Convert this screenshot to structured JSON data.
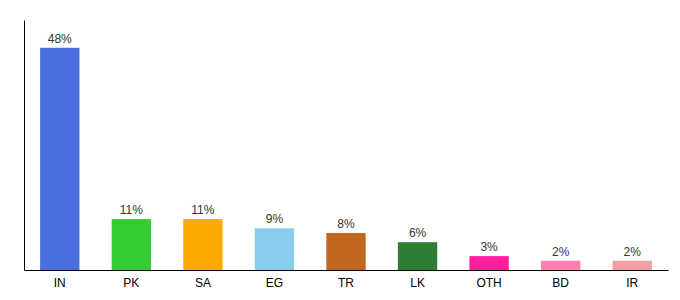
{
  "chart_data": {
    "type": "bar",
    "categories": [
      "IN",
      "PK",
      "SA",
      "EG",
      "TR",
      "LK",
      "OTH",
      "BD",
      "IR"
    ],
    "values": [
      48,
      11,
      11,
      9,
      8,
      6,
      3,
      2,
      2
    ],
    "value_labels": [
      "48%",
      "11%",
      "11%",
      "9%",
      "8%",
      "6%",
      "3%",
      "2%",
      "2%"
    ],
    "data_labels": true,
    "colors": [
      "#4a6fdc",
      "#33cc33",
      "#ffaa00",
      "#88ccee",
      "#c06820",
      "#2e7d32",
      "#ff1f9c",
      "#ff80b0",
      "#f0a0a0"
    ],
    "ylim": [
      0,
      54
    ],
    "tick_labels": "x"
  }
}
